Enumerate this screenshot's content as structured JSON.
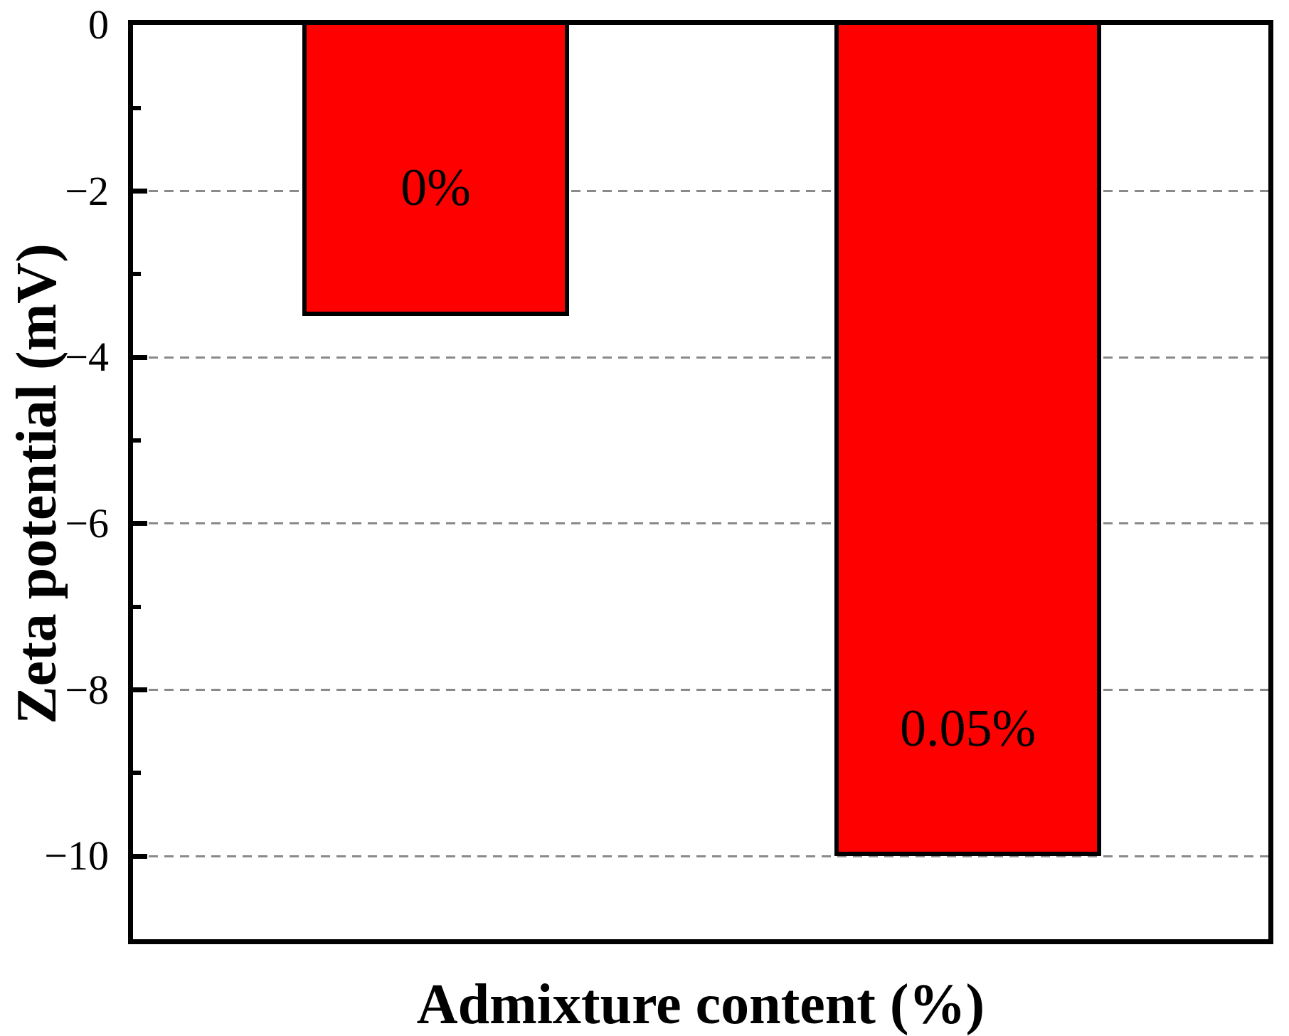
{
  "chart_data": {
    "type": "bar",
    "categories": [
      "0",
      "0.05"
    ],
    "values": [
      -3.5,
      -10
    ],
    "bar_labels": [
      "0%",
      "0.05%"
    ],
    "title": "",
    "xlabel": "Admixture content (%)",
    "ylabel": "Zeta potential (mV)",
    "ylim": [
      -11,
      0
    ],
    "yticks_major": [
      0,
      -2,
      -4,
      -6,
      -8,
      -10
    ],
    "ytick_labels": [
      "0",
      "−2",
      "−4",
      "−6",
      "−8",
      "−10"
    ],
    "yticks_minor": [
      -1,
      -3,
      -5,
      -7,
      -9
    ],
    "grid": {
      "axis": "y",
      "style": "dashed",
      "at": [
        -2,
        -4,
        -6,
        -8,
        -10
      ]
    },
    "legend": "none",
    "orientation": "vertical-negative"
  },
  "colors": {
    "bar_fill": "#ff0000",
    "bar_edge": "#000000",
    "grid": "#8a8a8a",
    "axis": "#000000",
    "text": "#000000",
    "background": "#ffffff"
  }
}
